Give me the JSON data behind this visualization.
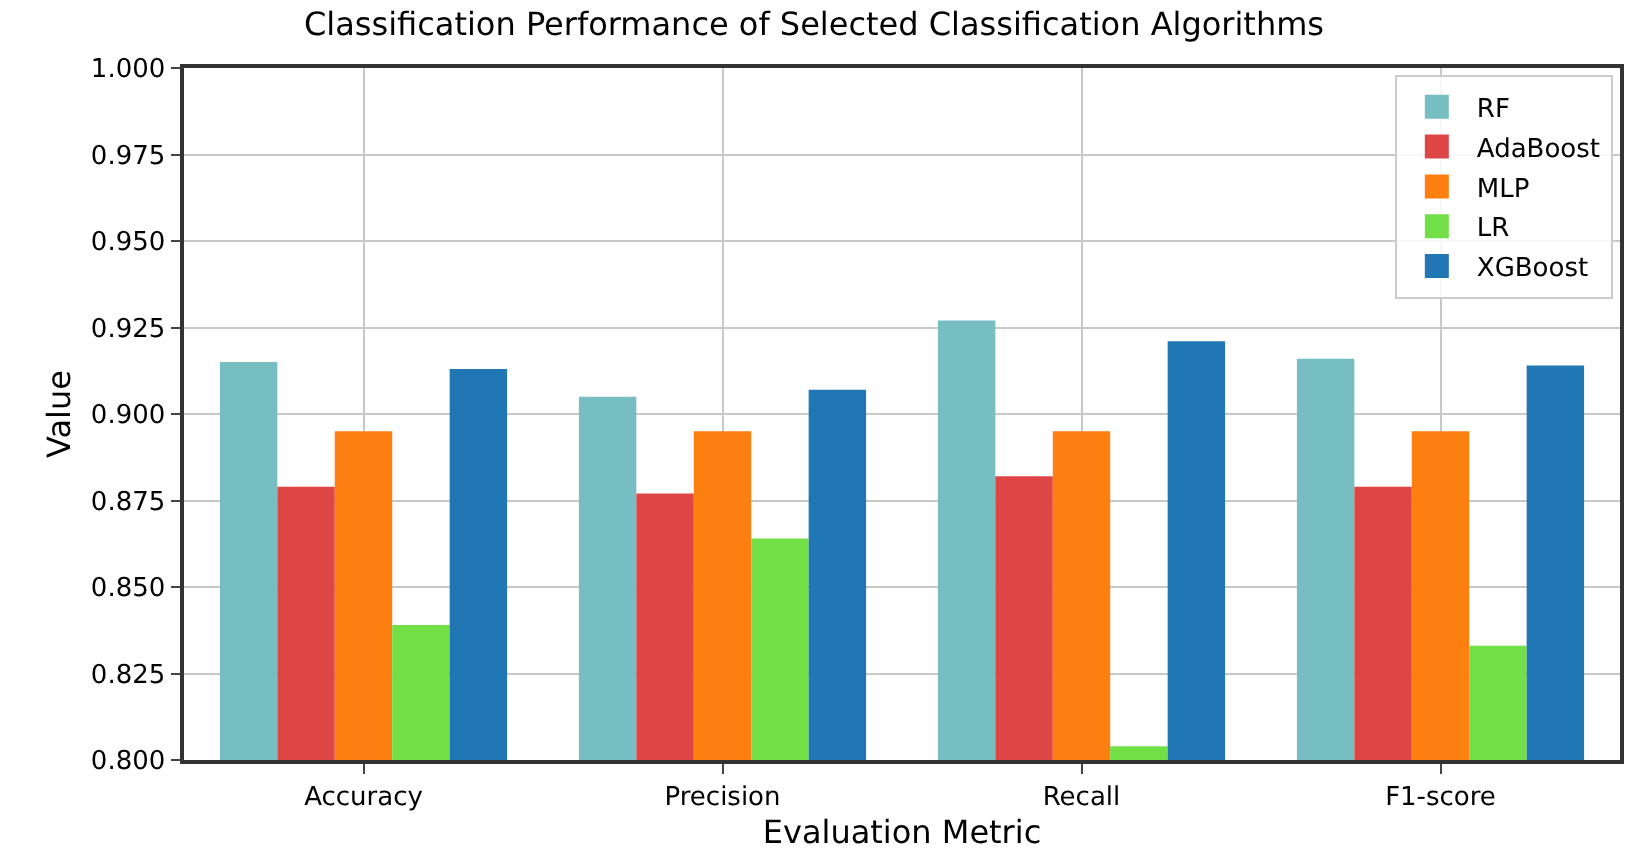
{
  "chart_data": {
    "type": "bar",
    "title": "Classification Performance of Selected Classification Algorithms",
    "xlabel": "Evaluation Metric",
    "ylabel": "Value",
    "categories": [
      "Accuracy",
      "Precision",
      "Recall",
      "F1-score"
    ],
    "series": [
      {
        "name": "RF",
        "color": "#76bec1",
        "values": [
          0.915,
          0.905,
          0.927,
          0.916
        ]
      },
      {
        "name": "AdaBoost",
        "color": "#de4646",
        "values": [
          0.879,
          0.877,
          0.882,
          0.879
        ]
      },
      {
        "name": "MLP",
        "color": "#fd7f10",
        "values": [
          0.895,
          0.895,
          0.895,
          0.895
        ]
      },
      {
        "name": "LR",
        "color": "#72df46",
        "values": [
          0.839,
          0.864,
          0.804,
          0.833
        ]
      },
      {
        "name": "XGBoost",
        "color": "#2077b4",
        "values": [
          0.913,
          0.907,
          0.921,
          0.914
        ]
      }
    ],
    "ylim": [
      0.8,
      1.0
    ],
    "yticks": [
      {
        "value": 0.8,
        "label": "0.800"
      },
      {
        "value": 0.825,
        "label": "0.825"
      },
      {
        "value": 0.85,
        "label": "0.850"
      },
      {
        "value": 0.875,
        "label": "0.875"
      },
      {
        "value": 0.9,
        "label": "0.900"
      },
      {
        "value": 0.925,
        "label": "0.925"
      },
      {
        "value": 0.95,
        "label": "0.950"
      },
      {
        "value": 0.975,
        "label": "0.975"
      },
      {
        "value": 1.0,
        "label": "1.000"
      }
    ],
    "grid": true,
    "legend": "top right"
  }
}
